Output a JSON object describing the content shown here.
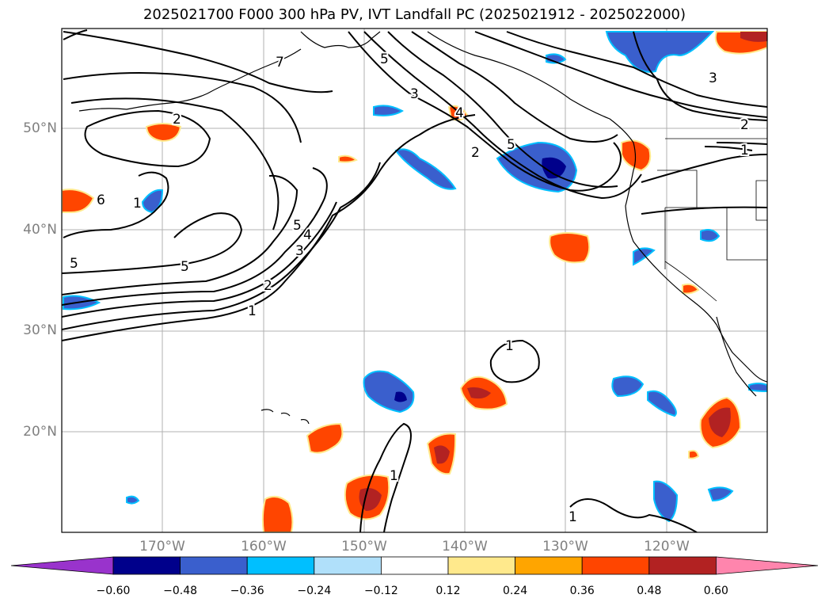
{
  "title": "2025021700 F000 300 hPa PV, IVT Landfall PC (2025021912 - 2025022000)",
  "lat_labels": [
    "50°N",
    "40°N",
    "30°N",
    "20°N"
  ],
  "lon_labels": [
    "170°W",
    "160°W",
    "150°W",
    "140°W",
    "130°W",
    "120°W"
  ],
  "contour_labels": [
    "2",
    "5",
    "3",
    "2",
    "5",
    "1",
    "2",
    "3",
    "6",
    "1",
    "5",
    "4",
    "3",
    "2",
    "1",
    "5",
    "5",
    "1",
    "1",
    "1",
    "4",
    "7"
  ],
  "colorbar": {
    "ticks": [
      "−0.60",
      "−0.48",
      "−0.36",
      "−0.24",
      "−0.12",
      "0.12",
      "0.24",
      "0.36",
      "0.48",
      "0.60"
    ],
    "colors": [
      "#9933cc",
      "#00008b",
      "#3a5fcd",
      "#00bfff",
      "#b0e0fa",
      "#ffffff",
      "#ffe98c",
      "#ffa500",
      "#ff4500",
      "#b22222",
      "#ff85ad"
    ]
  }
}
